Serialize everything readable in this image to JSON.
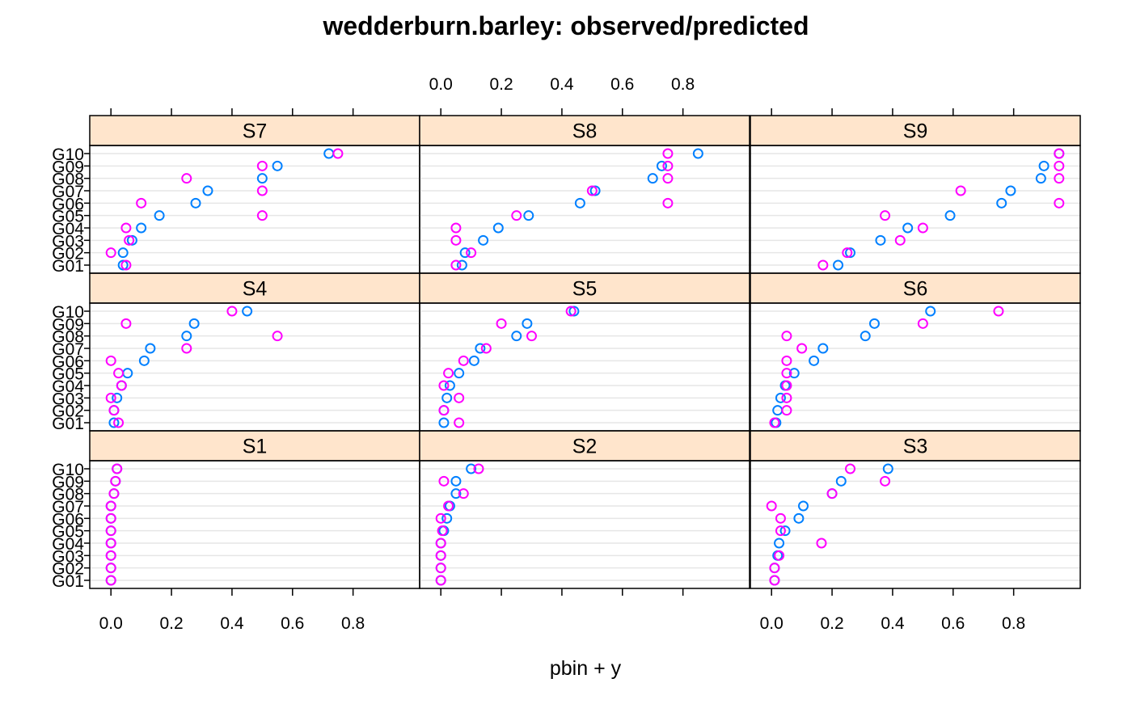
{
  "chart_data": {
    "type": "scatter",
    "title": "wedderburn.barley: observed/predicted",
    "xlabel": "pbin + y",
    "ylabel": "",
    "xlim": [
      -0.07,
      1.02
    ],
    "x_ticks": [
      0.0,
      0.2,
      0.4,
      0.6,
      0.8
    ],
    "x_tick_labels": [
      "0.0",
      "0.2",
      "0.4",
      "0.6",
      "0.8"
    ],
    "categories": [
      "G01",
      "G02",
      "G03",
      "G04",
      "G05",
      "G06",
      "G07",
      "G08",
      "G09",
      "G10"
    ],
    "colors": {
      "predicted": "#0080ff",
      "observed": "#ff00ff",
      "strip": "#ffe5cc",
      "grid": "#e6e6e6"
    },
    "panels": [
      {
        "name": "S1",
        "predicted": [
          0.0,
          0.0,
          0.0,
          0.0,
          0.0,
          0.0,
          0.0,
          0.01,
          0.015,
          0.02
        ],
        "observed": [
          0.0,
          0.0,
          0.0,
          0.0,
          0.0,
          0.0,
          0.0,
          0.01,
          0.015,
          0.02
        ]
      },
      {
        "name": "S2",
        "predicted": [
          0.0,
          0.0,
          0.0,
          0.0,
          0.01,
          0.02,
          0.03,
          0.05,
          0.05,
          0.1
        ],
        "observed": [
          0.0,
          0.0,
          0.0,
          0.0,
          0.005,
          0.0,
          0.025,
          0.075,
          0.01,
          0.125
        ]
      },
      {
        "name": "S3",
        "predicted": [
          0.01,
          0.01,
          0.02,
          0.025,
          0.045,
          0.09,
          0.105,
          0.2,
          0.23,
          0.385
        ],
        "observed": [
          0.01,
          0.01,
          0.025,
          0.165,
          0.03,
          0.03,
          0.0,
          0.2,
          0.375,
          0.26
        ]
      },
      {
        "name": "S4",
        "predicted": [
          0.01,
          0.01,
          0.02,
          0.035,
          0.055,
          0.11,
          0.13,
          0.25,
          0.275,
          0.45
        ],
        "observed": [
          0.025,
          0.01,
          0.0,
          0.035,
          0.025,
          0.0,
          0.25,
          0.55,
          0.05,
          0.4
        ]
      },
      {
        "name": "S5",
        "predicted": [
          0.01,
          0.01,
          0.02,
          0.03,
          0.06,
          0.11,
          0.13,
          0.25,
          0.285,
          0.44
        ],
        "observed": [
          0.06,
          0.01,
          0.06,
          0.01,
          0.025,
          0.075,
          0.15,
          0.3,
          0.2,
          0.43
        ]
      },
      {
        "name": "S6",
        "predicted": [
          0.015,
          0.02,
          0.03,
          0.045,
          0.075,
          0.14,
          0.17,
          0.31,
          0.34,
          0.525
        ],
        "observed": [
          0.01,
          0.05,
          0.05,
          0.05,
          0.05,
          0.05,
          0.1,
          0.05,
          0.5,
          0.75
        ]
      },
      {
        "name": "S7",
        "predicted": [
          0.04,
          0.04,
          0.07,
          0.1,
          0.16,
          0.28,
          0.32,
          0.5,
          0.55,
          0.72
        ],
        "observed": [
          0.05,
          0.0,
          0.06,
          0.05,
          0.5,
          0.1,
          0.5,
          0.25,
          0.5,
          0.75
        ]
      },
      {
        "name": "S8",
        "predicted": [
          0.07,
          0.08,
          0.14,
          0.19,
          0.29,
          0.46,
          0.51,
          0.7,
          0.73,
          0.85
        ],
        "observed": [
          0.05,
          0.1,
          0.05,
          0.05,
          0.25,
          0.75,
          0.5,
          0.75,
          0.75,
          0.75
        ]
      },
      {
        "name": "S9",
        "predicted": [
          0.22,
          0.26,
          0.36,
          0.45,
          0.59,
          0.76,
          0.79,
          0.89,
          0.9,
          0.95
        ],
        "observed": [
          0.17,
          0.25,
          0.425,
          0.5,
          0.375,
          0.95,
          0.625,
          0.95,
          0.95,
          0.95
        ]
      }
    ]
  }
}
